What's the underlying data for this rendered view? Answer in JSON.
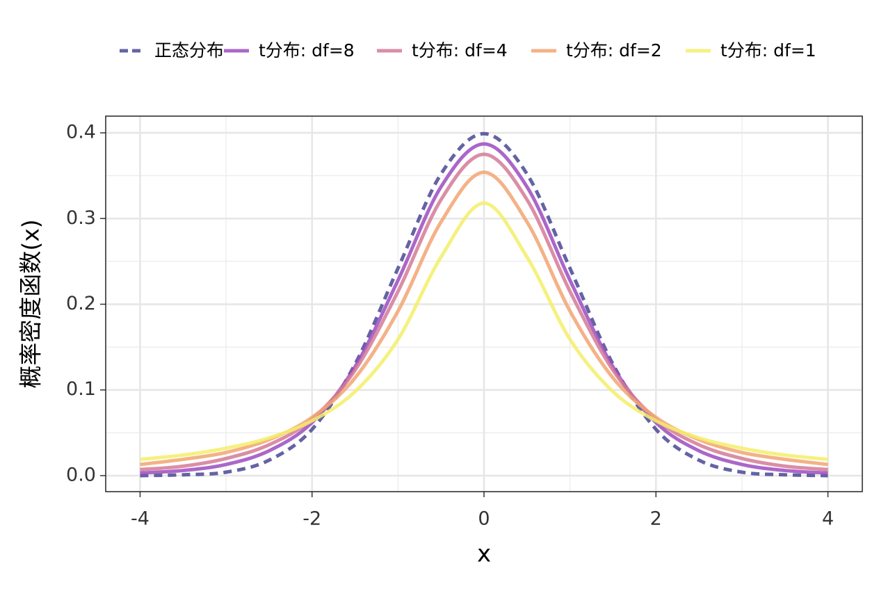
{
  "chart_data": {
    "type": "line",
    "x": [
      -4,
      -3.5,
      -3,
      -2.5,
      -2,
      -1.5,
      -1,
      -0.5,
      0,
      0.5,
      1,
      1.5,
      2,
      2.5,
      3,
      3.5,
      4
    ],
    "series": [
      {
        "name": "正态分布",
        "color": "#4a4894",
        "dashed": true,
        "values": [
          0.0,
          0.001,
          0.004,
          0.018,
          0.054,
          0.13,
          0.242,
          0.352,
          0.399,
          0.352,
          0.242,
          0.13,
          0.054,
          0.018,
          0.004,
          0.001,
          0.0
        ]
      },
      {
        "name": "t分布: df=8",
        "color": "#9c4cc0",
        "values": [
          0.003,
          0.006,
          0.013,
          0.029,
          0.062,
          0.127,
          0.228,
          0.337,
          0.387,
          0.337,
          0.228,
          0.127,
          0.062,
          0.029,
          0.013,
          0.006,
          0.003
        ]
      },
      {
        "name": "t分布: df=4",
        "color": "#d47a95",
        "values": [
          0.007,
          0.011,
          0.02,
          0.036,
          0.066,
          0.123,
          0.215,
          0.322,
          0.375,
          0.322,
          0.215,
          0.123,
          0.066,
          0.036,
          0.02,
          0.011,
          0.007
        ]
      },
      {
        "name": "t分布: df=2",
        "color": "#f2a472",
        "values": [
          0.013,
          0.019,
          0.027,
          0.042,
          0.068,
          0.114,
          0.192,
          0.296,
          0.354,
          0.296,
          0.192,
          0.114,
          0.068,
          0.042,
          0.027,
          0.019,
          0.013
        ]
      },
      {
        "name": "t分布: df=1",
        "color": "#f3ee6a",
        "values": [
          0.019,
          0.024,
          0.032,
          0.044,
          0.064,
          0.098,
          0.159,
          0.255,
          0.318,
          0.255,
          0.159,
          0.098,
          0.064,
          0.044,
          0.032,
          0.024,
          0.019
        ]
      }
    ],
    "xlabel": "x",
    "ylabel": "概率密度函数(x)",
    "xlim": [
      -4.4,
      4.4
    ],
    "xticks": [
      -4,
      -2,
      0,
      2,
      4
    ],
    "ylim": [
      -0.0187,
      0.4195
    ],
    "yticks": [
      {
        "value": 0,
        "label": "0.0"
      },
      0.1,
      0.2,
      0.3,
      0.4
    ],
    "grid": true,
    "legend": "top"
  }
}
